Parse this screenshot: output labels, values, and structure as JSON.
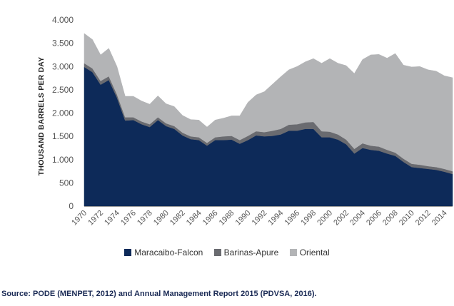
{
  "chart_data": {
    "type": "area",
    "stacked": true,
    "ylabel": "THOUSAND BARRELS PER DAY",
    "ylim": [
      0,
      4000
    ],
    "yticks": [
      0,
      500,
      1000,
      1500,
      2000,
      2500,
      3000,
      3500,
      4000
    ],
    "ytick_labels": [
      "0",
      "500",
      "1.000",
      "1.500",
      "2.000",
      "2.500",
      "3.000",
      "3.500",
      "4.000"
    ],
    "x": [
      1970,
      1971,
      1972,
      1973,
      1974,
      1975,
      1976,
      1977,
      1978,
      1979,
      1980,
      1981,
      1982,
      1983,
      1984,
      1985,
      1986,
      1987,
      1988,
      1989,
      1990,
      1991,
      1992,
      1993,
      1994,
      1995,
      1996,
      1997,
      1998,
      1999,
      2000,
      2001,
      2002,
      2003,
      2004,
      2005,
      2006,
      2007,
      2008,
      2009,
      2010,
      2011,
      2012,
      2013,
      2014,
      2015
    ],
    "xtick_labels": [
      "1970",
      "1972",
      "1974",
      "1976",
      "1978",
      "1980",
      "1982",
      "1984",
      "1986",
      "1988",
      "1990",
      "1992",
      "1994",
      "1996",
      "1998",
      "2000",
      "2002",
      "2004",
      "2006",
      "2008",
      "2010",
      "2012",
      "2014"
    ],
    "series": [
      {
        "name": "Maracaibo-Falcon",
        "color": "#0d2a59",
        "values": [
          2990,
          2880,
          2610,
          2710,
          2330,
          1840,
          1850,
          1760,
          1700,
          1850,
          1720,
          1660,
          1520,
          1440,
          1420,
          1300,
          1420,
          1420,
          1430,
          1340,
          1420,
          1520,
          1500,
          1510,
          1540,
          1620,
          1620,
          1660,
          1660,
          1480,
          1480,
          1430,
          1330,
          1130,
          1250,
          1210,
          1190,
          1130,
          1080,
          950,
          840,
          820,
          800,
          780,
          740,
          690
        ]
      },
      {
        "name": "Barinas-Apure",
        "color": "#6a6b70",
        "values": [
          80,
          80,
          80,
          80,
          70,
          70,
          60,
          60,
          60,
          60,
          60,
          60,
          60,
          60,
          60,
          60,
          60,
          80,
          80,
          80,
          90,
          90,
          90,
          110,
          120,
          130,
          140,
          140,
          150,
          130,
          120,
          110,
          100,
          100,
          100,
          90,
          90,
          80,
          70,
          70,
          70,
          70,
          60,
          60,
          60,
          60
        ]
      },
      {
        "name": "Oriental",
        "color": "#b3b4b6",
        "values": [
          640,
          620,
          560,
          600,
          600,
          450,
          450,
          440,
          430,
          460,
          420,
          420,
          370,
          360,
          370,
          340,
          370,
          390,
          430,
          520,
          720,
          780,
          870,
          1000,
          1120,
          1180,
          1240,
          1300,
          1360,
          1460,
          1570,
          1530,
          1590,
          1620,
          1800,
          1950,
          1980,
          1970,
          2130,
          2010,
          2080,
          2110,
          2070,
          2060,
          2000,
          2010
        ]
      }
    ],
    "legend": [
      "Maracaibo-Falcon",
      "Barinas-Apure",
      "Oriental"
    ],
    "legend_position": "bottom"
  },
  "source": "Source: PODE (MENPET, 2012) and Annual Management Report 2015 (PDVSA, 2016)."
}
